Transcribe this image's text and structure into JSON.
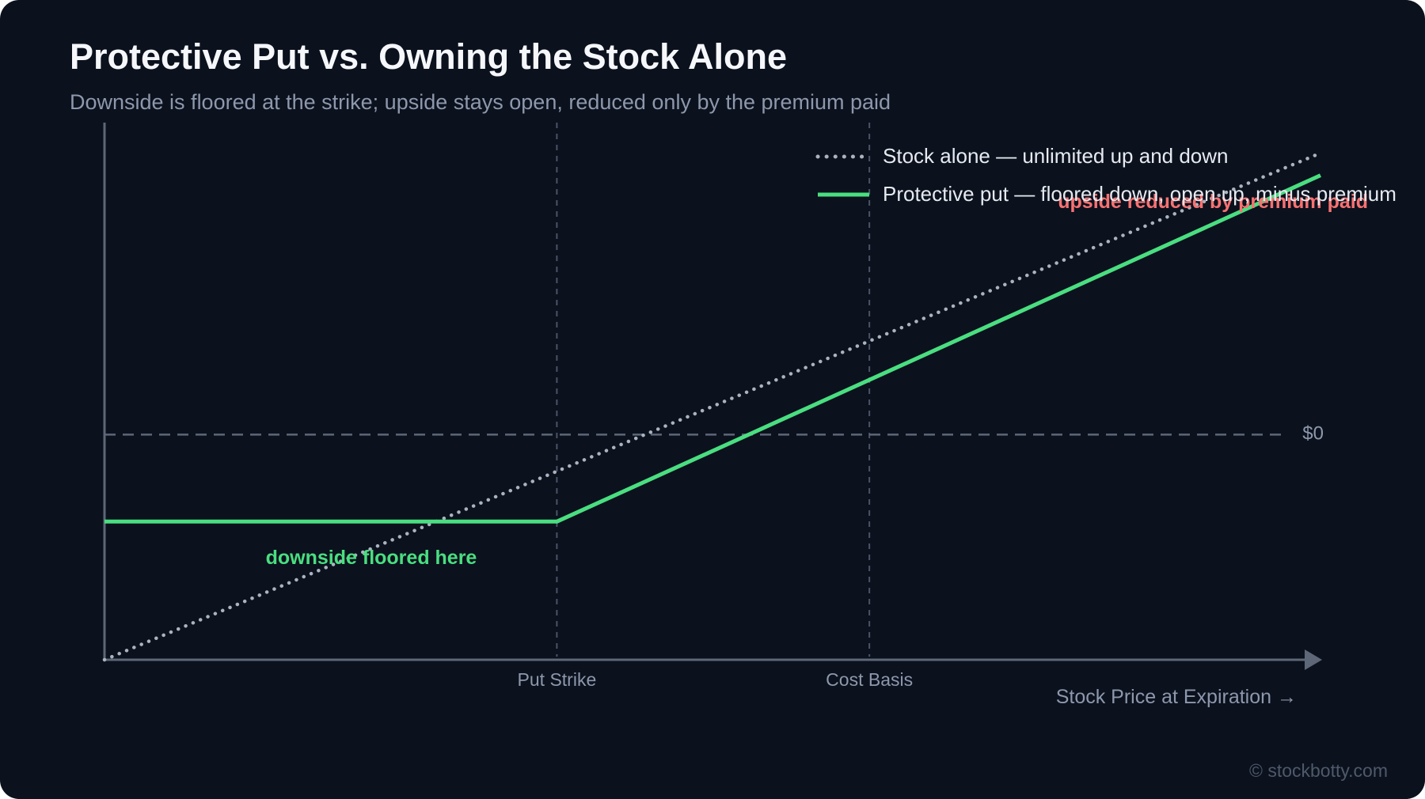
{
  "header": {
    "title": "Protective Put vs. Owning the Stock Alone",
    "subtitle": "Downside is floored at the strike; upside stays open, reduced only by the premium paid"
  },
  "chart_data": {
    "type": "line",
    "xlabel": "Stock Price at Expiration →",
    "ylabel": "",
    "x_ticks": [
      {
        "name": "put-strike",
        "label": "Put Strike",
        "x": 0.372
      },
      {
        "name": "cost-basis",
        "label": "Cost Basis",
        "x": 0.629
      }
    ],
    "y_reference": {
      "label": "$0",
      "y": 0.0
    },
    "xlim": [
      0,
      1
    ],
    "ylim": [
      -0.8,
      1.08
    ],
    "series": [
      {
        "name": "Stock alone — unlimited up and down",
        "style": "dotted",
        "color": "#aab3c0",
        "x": [
          0,
          1
        ],
        "y": [
          -0.8,
          1.0
        ]
      },
      {
        "name": "Protective put — floored down, open up, minus premium",
        "style": "solid",
        "color": "#4ade80",
        "x": [
          0,
          0.372,
          1
        ],
        "y": [
          -0.309,
          -0.309,
          0.921
        ]
      }
    ],
    "annotations": [
      {
        "name": "downside-floor-note",
        "text": "downside floored here",
        "color": "#4ade80"
      },
      {
        "name": "premium-note",
        "text": "upside reduced by premium paid",
        "color": "#f87171"
      }
    ],
    "legend_position": "top-right",
    "grid": false
  },
  "footer": {
    "credit": "© stockbotty.com"
  },
  "colors": {
    "background": "#0b111d",
    "axis": "#5d6778",
    "guide": "#4a5466",
    "muted_text": "#8d98ac"
  }
}
